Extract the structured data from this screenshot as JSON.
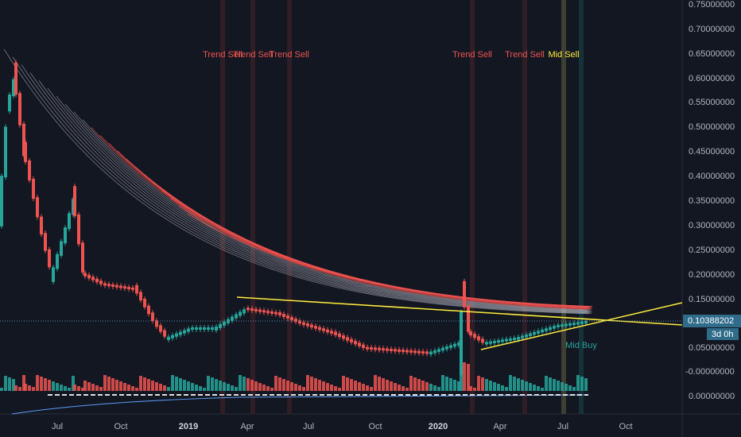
{
  "price_axis": {
    "labels": [
      "0.75000000",
      "0.70000000",
      "0.65000000",
      "0.60000000",
      "0.55000000",
      "0.50000000",
      "0.45000000",
      "0.40000000",
      "0.35000000",
      "0.30000000",
      "0.25000000",
      "0.20000000",
      "0.15000000",
      "0.05000000"
    ],
    "volume_label": "-0.00000000",
    "oscillator_label": "0.00000000"
  },
  "time_axis": {
    "labels": [
      "Jul",
      "Oct",
      "2019",
      "Apr",
      "Jul",
      "Oct",
      "2020",
      "Apr",
      "Jul",
      "Oct"
    ]
  },
  "signals": [
    {
      "label": "Trend Sell"
    },
    {
      "label": "Trend Sell"
    },
    {
      "label": "Trend Sell"
    },
    {
      "label": "Trend Sell"
    },
    {
      "label": "Trend Sell"
    },
    {
      "label": "Mid Sell"
    },
    {
      "label": "Mid Buy"
    }
  ],
  "price_tag": {
    "price": "0.10388202",
    "countdown": "3d 0h"
  }
}
